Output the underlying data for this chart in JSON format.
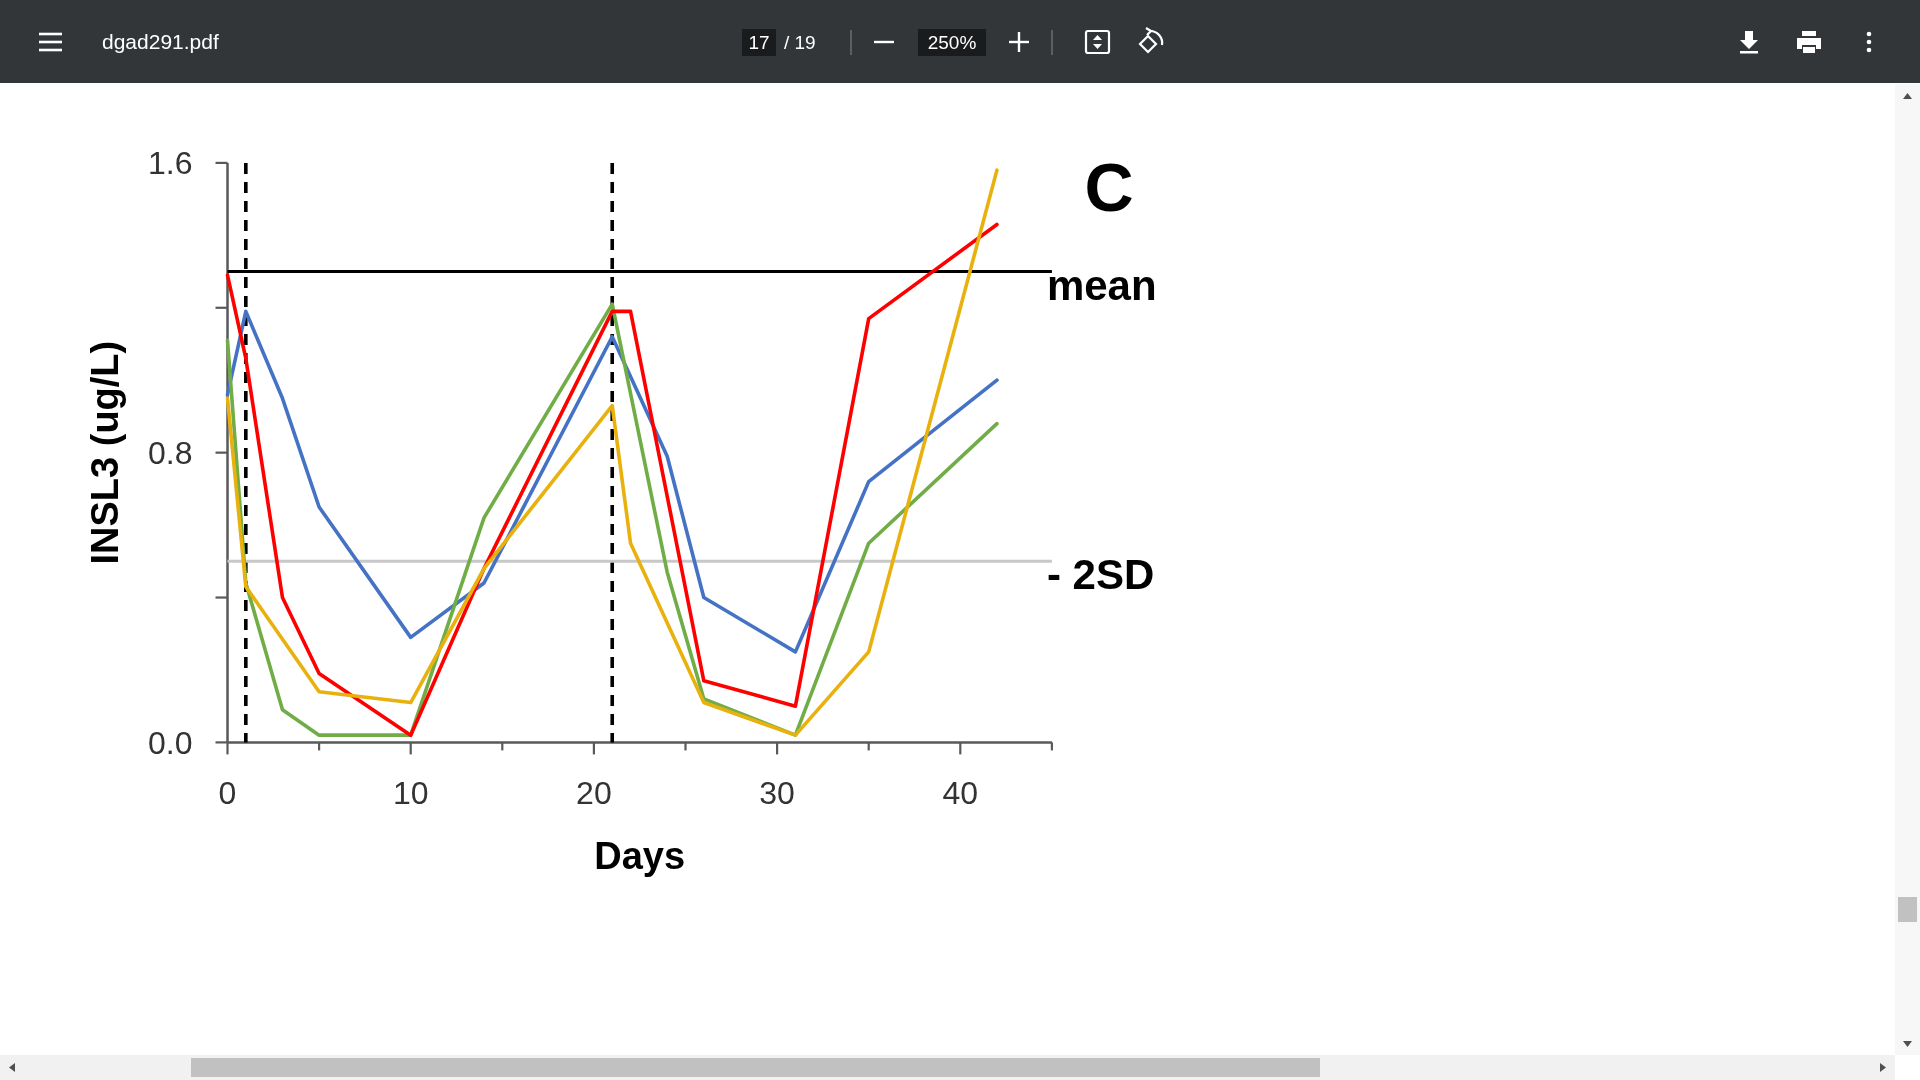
{
  "chart_data": {
    "type": "line",
    "title": "C",
    "xlabel": "Days",
    "ylabel": "INSL3 (ug/L)",
    "xlim": [
      0,
      45
    ],
    "ylim": [
      0,
      1.6
    ],
    "xticks": [
      0,
      {
        "value": 5,
        "label": null
      },
      10,
      {
        "value": 15,
        "label": null
      },
      20,
      {
        "value": 25,
        "label": null
      },
      30,
      {
        "value": 35,
        "label": null
      },
      40,
      {
        "value": 45,
        "label": null
      }
    ],
    "yticks": [
      {
        "value": 0,
        "label": "0.0"
      },
      {
        "value": 0.4,
        "label": null
      },
      0.8,
      {
        "value": 1.2,
        "label": null
      },
      1.6
    ],
    "series": [
      {
        "color": "#4472c4",
        "x": [
          0,
          1,
          3,
          5,
          10,
          14,
          21,
          24,
          26,
          31,
          35,
          42
        ],
        "values": [
          0.96,
          1.19,
          0.95,
          0.65,
          0.29,
          0.44,
          1.12,
          0.79,
          0.4,
          0.25,
          0.72,
          1.0
        ]
      },
      {
        "color": "#70ad47",
        "x": [
          0,
          1,
          3,
          5,
          10,
          14,
          21,
          24,
          26,
          31,
          35,
          42
        ],
        "values": [
          1.11,
          0.44,
          0.09,
          0.02,
          0.02,
          0.62,
          1.21,
          0.47,
          0.12,
          0.02,
          0.55,
          0.88
        ]
      },
      {
        "color": "#ff0000",
        "x": [
          0,
          1,
          3,
          5,
          10,
          14,
          21,
          22,
          26,
          31,
          35,
          42
        ],
        "values": [
          1.29,
          1.06,
          0.4,
          0.19,
          0.02,
          0.48,
          1.19,
          1.19,
          0.17,
          0.1,
          1.17,
          1.43
        ]
      },
      {
        "color": "#e8b10e",
        "x": [
          0,
          1,
          5,
          10,
          14,
          21,
          22,
          26,
          31,
          35,
          42
        ],
        "values": [
          0.95,
          0.43,
          0.14,
          0.11,
          0.48,
          0.93,
          0.55,
          0.11,
          0.02,
          0.25,
          1.58
        ]
      }
    ],
    "ref_lines": [
      {
        "axis": "x",
        "value": 1,
        "color": "#000000",
        "line_style": "dashed"
      },
      {
        "axis": "x",
        "value": 21,
        "color": "#000000",
        "line_style": "dashed"
      },
      {
        "axis": "y",
        "value": 1.3,
        "label": "mean",
        "color": "#000000"
      },
      {
        "axis": "y",
        "value": 0.5,
        "label": "- 2SD",
        "color": "#c8c8c8"
      }
    ],
    "annotations": [
      "dgad291.pdf",
      "17",
      "/ 19",
      "250%"
    ]
  }
}
